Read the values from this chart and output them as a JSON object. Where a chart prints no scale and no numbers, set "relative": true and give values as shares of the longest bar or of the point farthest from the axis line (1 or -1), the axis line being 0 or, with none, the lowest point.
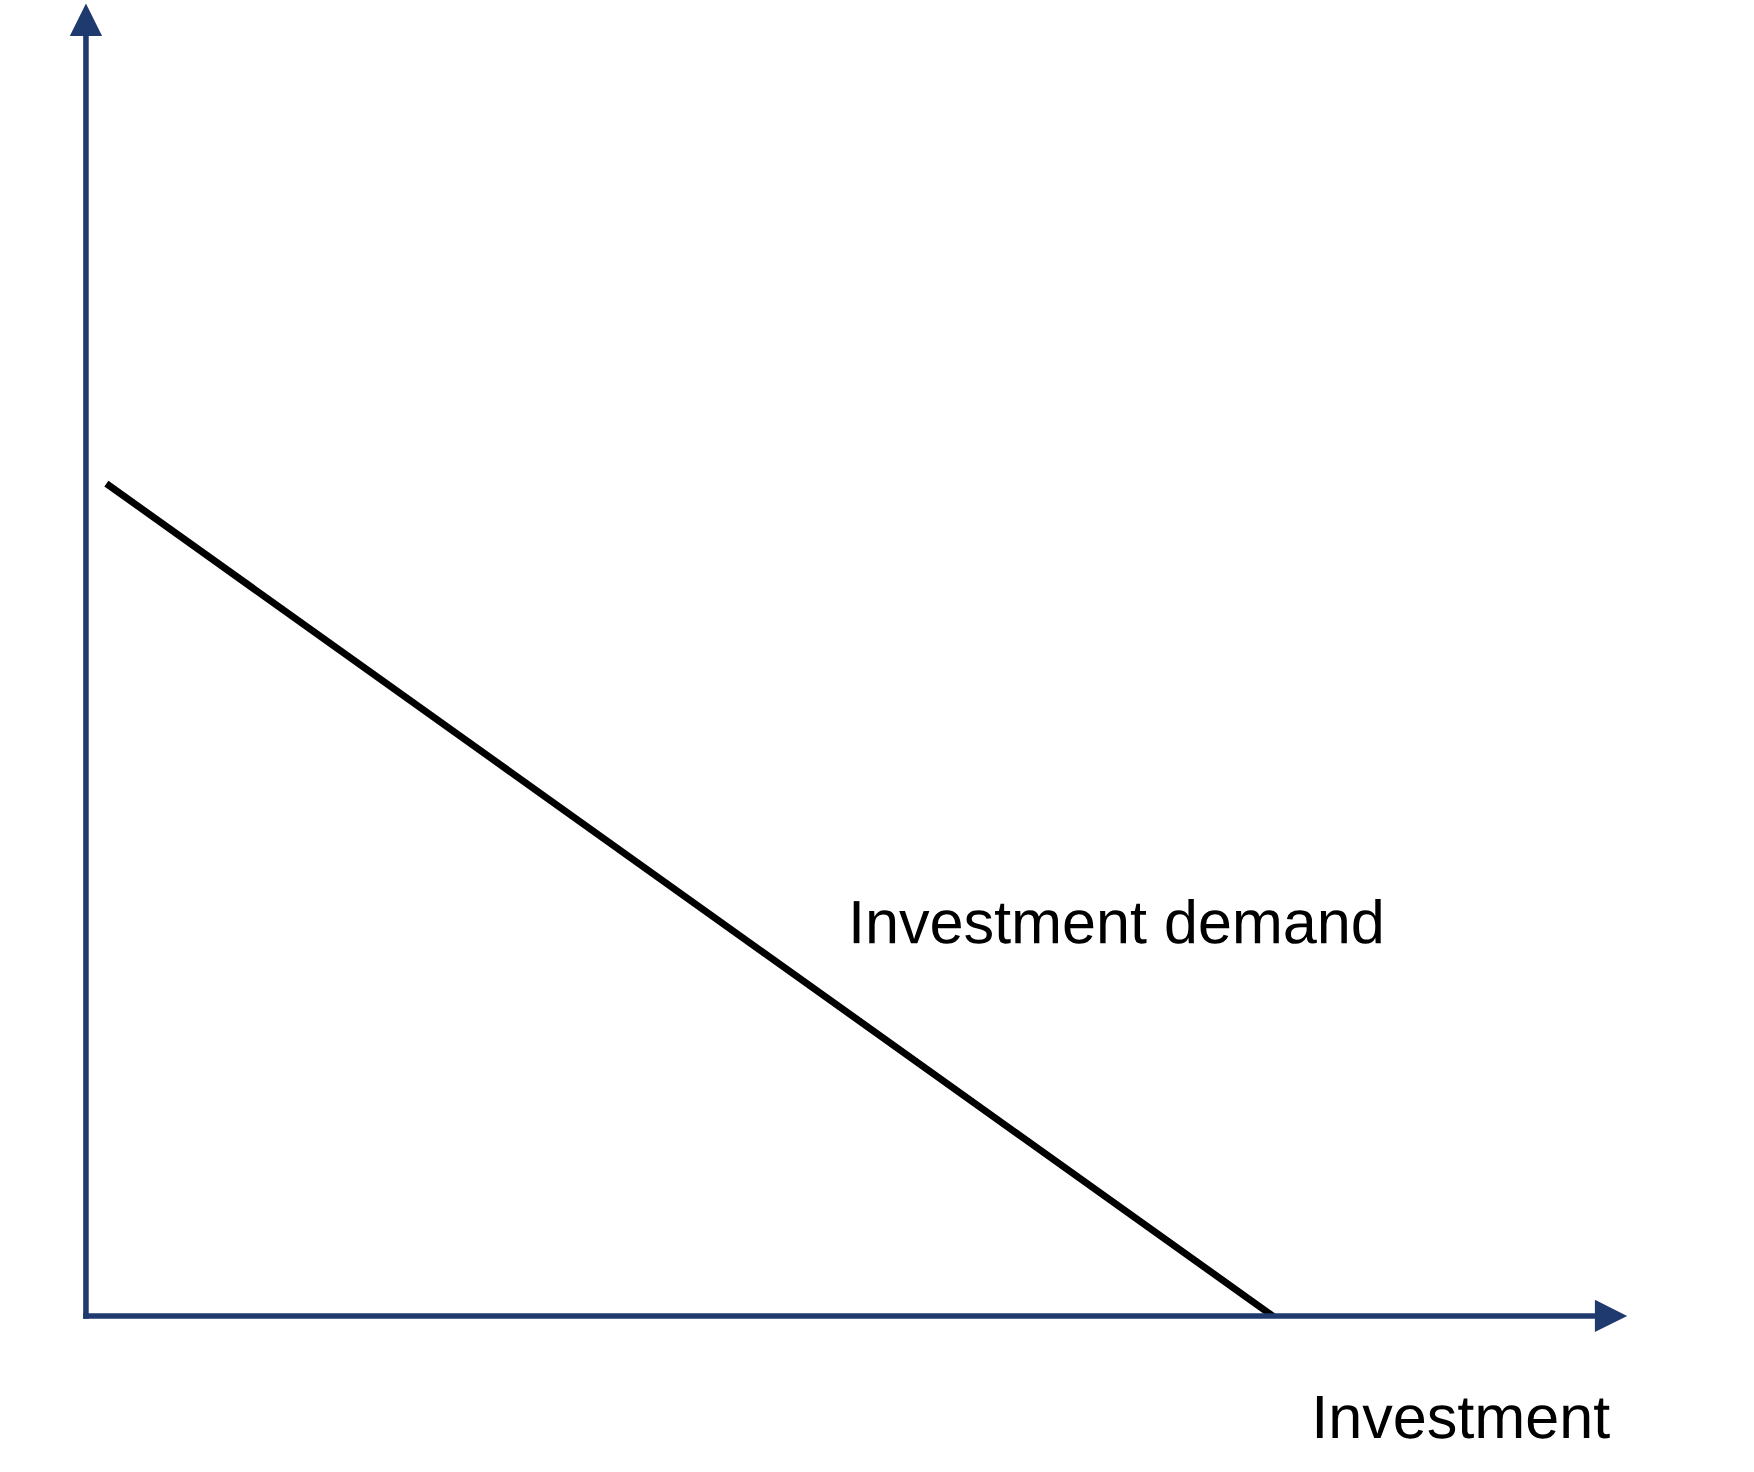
{
  "chart_data": {
    "type": "line",
    "relative": true,
    "xlabel": "Investment",
    "annotations": [
      "Investment demand"
    ],
    "categories": [
      null,
      null
    ],
    "series": [
      {
        "color": "#000000",
        "values": [
          1,
          0
        ]
      }
    ],
    "marker": "none",
    "line_style": "solid",
    "legend": false
  }
}
